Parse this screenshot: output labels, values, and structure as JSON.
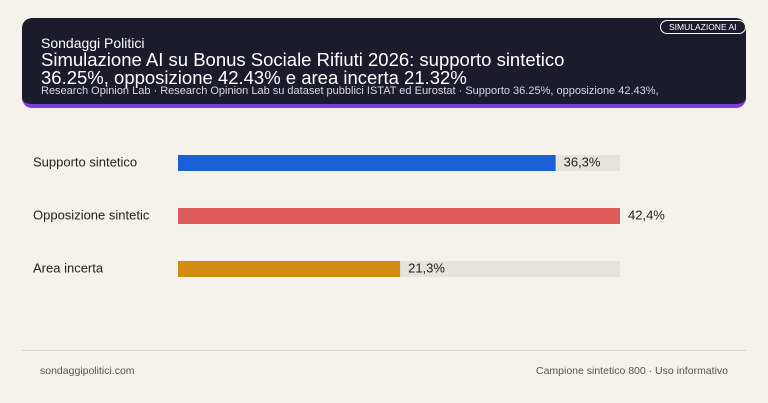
{
  "header": {
    "brand": "Sondaggi Politici",
    "badge": "SIMULAZIONE AI",
    "subtitle": "Research Opinion Lab · Research Opinion Lab su dataset pubblici ISTAT ed Eurostat · Supporto 36.25%, opposizione 42.43%,"
  },
  "chart_data": {
    "type": "hbar",
    "title": "Simulazione AI su Bonus Sociale Rifiuti 2026: supporto sintetico 36.25%, opposizione 42.43% e area incerta 21.32%",
    "categories": [
      "Supporto sintetico",
      "Opposizione sintetic",
      "Area incerta"
    ],
    "values": [
      36.25,
      42.43,
      21.32
    ],
    "value_labels": [
      "36,3%",
      "42,4%",
      "21,3%"
    ],
    "colors": [
      "#1a5fd6",
      "#dd5b5b",
      "#d38c12"
    ],
    "xlim": [
      0,
      42.43
    ]
  },
  "footer": {
    "left": "sondaggipolitici.com",
    "right": "Campione sintetico 800 · Uso informativo"
  }
}
